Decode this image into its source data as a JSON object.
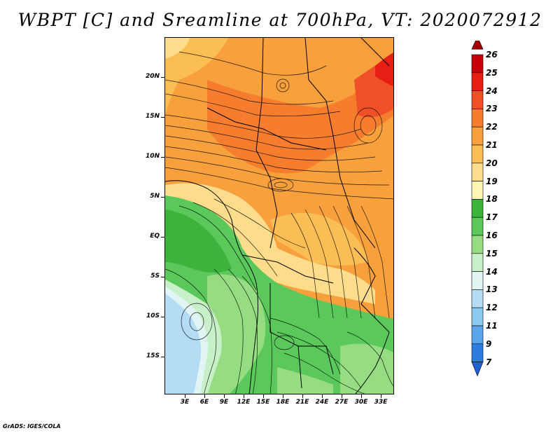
{
  "title": "WBPT [C] and Sreamline at 700hPa, VT: 2020072912",
  "credit": "GrADS: IGES/COLA",
  "map": {
    "lat_labels": [
      "20N",
      "15N",
      "10N",
      "5N",
      "EQ",
      "5S",
      "10S",
      "15S"
    ],
    "lon_labels": [
      "3E",
      "6E",
      "9E",
      "12E",
      "15E",
      "18E",
      "21E",
      "24E",
      "27E",
      "30E",
      "33E"
    ]
  },
  "colorbar": {
    "labels": [
      "26",
      "25",
      "24",
      "23",
      "22",
      "21",
      "20",
      "19",
      "18",
      "17",
      "16",
      "15",
      "14",
      "13",
      "12",
      "11",
      "9",
      "7"
    ],
    "colors": [
      "#a50000",
      "#c8000a",
      "#e61e14",
      "#f05028",
      "#f57d2d",
      "#f7a03c",
      "#fabe55",
      "#fddc8c",
      "#fff5b4",
      "#3cb43c",
      "#5ac85a",
      "#96dc82",
      "#c8f0c8",
      "#e1f5f5",
      "#b4dcf5",
      "#8cc8f0",
      "#5aa5eb",
      "#2d7de1",
      "#1e5fd2"
    ]
  }
}
